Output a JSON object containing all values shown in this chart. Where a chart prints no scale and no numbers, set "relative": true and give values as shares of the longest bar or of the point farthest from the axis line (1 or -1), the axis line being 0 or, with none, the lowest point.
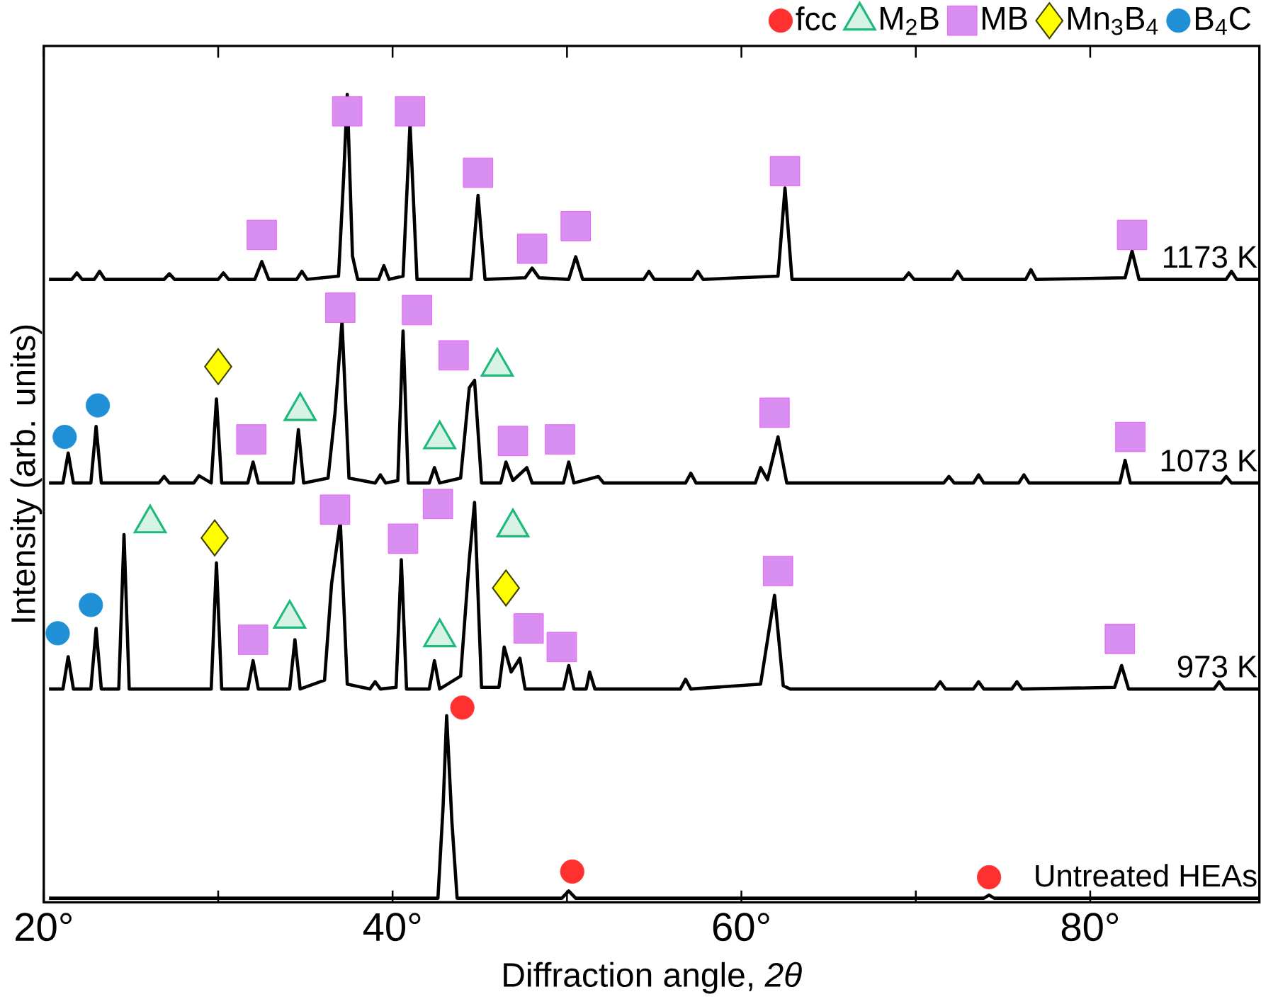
{
  "chart_data": {
    "type": "line",
    "relative": true,
    "xlabel": "Diffraction angle, *2θ*",
    "ylabel": "Intensity (arb. units)",
    "xlim": [
      20,
      89.7
    ],
    "xticks": [
      {
        "value": 20,
        "label": "20°"
      },
      {
        "value": 30,
        "label": null
      },
      {
        "value": 40,
        "label": "40°"
      },
      {
        "value": 50,
        "label": null
      },
      {
        "value": 60,
        "label": "60°"
      },
      {
        "value": 70,
        "label": null
      },
      {
        "value": 80,
        "label": "80°"
      }
    ],
    "legend": "top",
    "line_style": "solid",
    "series": [
      {
        "name": "1173 K",
        "color": "#000000",
        "x": [
          20.3,
          21.6,
          21.9,
          22.2,
          22.9,
          23.2,
          23.5,
          26.9,
          27.2,
          27.5,
          30.0,
          30.3,
          30.6,
          32.1,
          32.5,
          32.9,
          34.5,
          34.8,
          35.1,
          36.9,
          37.2,
          37.4,
          37.7,
          38.0,
          39.2,
          39.5,
          39.8,
          40.6,
          41.0,
          41.4,
          44.5,
          44.9,
          45.3,
          47.6,
          48.0,
          48.4,
          50.1,
          50.5,
          50.9,
          54.4,
          54.7,
          55.0,
          57.2,
          57.5,
          57.8,
          62.1,
          62.5,
          62.9,
          69.3,
          69.6,
          69.9,
          72.1,
          72.4,
          72.7,
          76.3,
          76.6,
          76.9,
          82.0,
          82.4,
          82.8,
          87.8,
          88.1,
          88.4,
          89.7
        ],
        "values": [
          0.771,
          0.771,
          0.779,
          0.771,
          0.771,
          0.781,
          0.771,
          0.771,
          0.778,
          0.771,
          0.771,
          0.779,
          0.771,
          0.771,
          0.793,
          0.771,
          0.771,
          0.781,
          0.771,
          0.775,
          0.9,
          1.0,
          0.8,
          0.771,
          0.771,
          0.788,
          0.771,
          0.775,
          0.964,
          0.771,
          0.771,
          0.875,
          0.771,
          0.773,
          0.785,
          0.773,
          0.771,
          0.799,
          0.771,
          0.771,
          0.781,
          0.771,
          0.771,
          0.781,
          0.771,
          0.775,
          0.884,
          0.771,
          0.771,
          0.779,
          0.771,
          0.771,
          0.781,
          0.771,
          0.771,
          0.783,
          0.771,
          0.773,
          0.806,
          0.771,
          0.771,
          0.781,
          0.771,
          0.771
        ]
      },
      {
        "name": "1073 K",
        "color": "#000000",
        "x": [
          20.3,
          21.1,
          21.4,
          21.7,
          22.7,
          23.0,
          23.3,
          26.6,
          26.9,
          27.2,
          28.6,
          28.9,
          29.6,
          29.9,
          30.2,
          31.7,
          32.0,
          32.3,
          34.3,
          34.6,
          34.9,
          36.3,
          36.7,
          37.1,
          37.5,
          39.0,
          39.3,
          39.6,
          40.3,
          40.6,
          40.9,
          42.1,
          42.4,
          42.7,
          43.9,
          44.4,
          44.7,
          45.1,
          46.2,
          46.5,
          46.9,
          47.7,
          48.0,
          49.8,
          50.1,
          50.4,
          51.8,
          52.1,
          56.8,
          57.1,
          57.4,
          60.8,
          61.1,
          61.5,
          62.1,
          62.6,
          71.6,
          71.9,
          72.2,
          73.3,
          73.6,
          73.9,
          75.9,
          76.2,
          76.5,
          81.7,
          82.0,
          82.3,
          87.5,
          87.8,
          88.1,
          89.7
        ],
        "values": [
          0.519,
          0.519,
          0.556,
          0.519,
          0.519,
          0.589,
          0.519,
          0.519,
          0.527,
          0.519,
          0.519,
          0.528,
          0.519,
          0.623,
          0.519,
          0.519,
          0.545,
          0.519,
          0.519,
          0.585,
          0.519,
          0.525,
          0.606,
          0.719,
          0.525,
          0.519,
          0.529,
          0.519,
          0.522,
          0.707,
          0.519,
          0.519,
          0.538,
          0.519,
          0.525,
          0.637,
          0.646,
          0.519,
          0.519,
          0.545,
          0.522,
          0.538,
          0.519,
          0.519,
          0.545,
          0.519,
          0.527,
          0.519,
          0.519,
          0.531,
          0.519,
          0.519,
          0.538,
          0.523,
          0.576,
          0.519,
          0.519,
          0.527,
          0.519,
          0.519,
          0.529,
          0.519,
          0.519,
          0.529,
          0.519,
          0.519,
          0.547,
          0.519,
          0.519,
          0.527,
          0.519,
          0.519
        ]
      },
      {
        "name": "973 K",
        "color": "#000000",
        "x": [
          20.3,
          21.1,
          21.4,
          21.7,
          22.7,
          23.0,
          23.3,
          24.3,
          24.6,
          24.9,
          29.6,
          29.9,
          30.2,
          31.7,
          32.0,
          32.3,
          34.1,
          34.4,
          34.7,
          36.1,
          36.5,
          37.0,
          37.4,
          38.7,
          39.0,
          39.3,
          40.2,
          40.5,
          40.8,
          42.1,
          42.4,
          42.7,
          43.9,
          44.4,
          44.7,
          45.1,
          46.1,
          46.4,
          46.8,
          47.3,
          47.6,
          49.8,
          50.1,
          50.4,
          51.1,
          51.3,
          51.6,
          56.5,
          56.8,
          57.1,
          61.1,
          61.9,
          62.4,
          62.8,
          71.1,
          71.4,
          71.7,
          73.3,
          73.6,
          73.9,
          75.5,
          75.8,
          76.1,
          81.4,
          81.8,
          82.2,
          87.1,
          87.4,
          87.7,
          89.7
        ],
        "values": [
          0.264,
          0.264,
          0.304,
          0.264,
          0.264,
          0.339,
          0.264,
          0.264,
          0.455,
          0.264,
          0.264,
          0.42,
          0.264,
          0.264,
          0.299,
          0.264,
          0.264,
          0.325,
          0.264,
          0.275,
          0.394,
          0.472,
          0.27,
          0.264,
          0.273,
          0.264,
          0.266,
          0.424,
          0.264,
          0.264,
          0.299,
          0.264,
          0.28,
          0.425,
          0.495,
          0.266,
          0.266,
          0.316,
          0.285,
          0.302,
          0.264,
          0.264,
          0.293,
          0.264,
          0.264,
          0.285,
          0.264,
          0.264,
          0.276,
          0.264,
          0.27,
          0.38,
          0.268,
          0.264,
          0.264,
          0.273,
          0.264,
          0.264,
          0.273,
          0.264,
          0.264,
          0.273,
          0.264,
          0.266,
          0.293,
          0.264,
          0.264,
          0.273,
          0.264,
          0.264
        ]
      },
      {
        "name": "Untreated HEAs",
        "color": "#000000",
        "x": [
          20.3,
          42.6,
          42.9,
          43.1,
          43.4,
          43.7,
          49.7,
          50.1,
          50.5,
          73.9,
          74.2,
          74.5,
          89.7
        ],
        "values": [
          0.005,
          0.005,
          0.12,
          0.231,
          0.1,
          0.005,
          0.005,
          0.014,
          0.005,
          0.005,
          0.009,
          0.005,
          0.005
        ]
      },
      {
        "name": "fcc",
        "type": "scatter",
        "color": "#ff3030",
        "marker": "circle",
        "x": [
          44.0,
          50.3,
          74.2
        ],
        "values": [
          0.241,
          0.038,
          0.031
        ]
      },
      {
        "name": "M$_{2}$B",
        "type": "scatter",
        "color": "#1fb97a",
        "marker": "triangle",
        "x": [
          34.7,
          42.7,
          46.0,
          26.1,
          34.1,
          42.7,
          46.9
        ],
        "values": [
          0.608,
          0.573,
          0.663,
          0.469,
          0.351,
          0.328,
          0.464
        ]
      },
      {
        "name": "MB",
        "type": "scatter",
        "color": "#d98ff2",
        "marker": "square",
        "x": [
          32.5,
          37.4,
          41.0,
          44.9,
          48.0,
          50.5,
          62.5,
          82.4,
          31.9,
          37.0,
          41.4,
          43.5,
          46.9,
          49.6,
          61.9,
          82.3,
          32.0,
          36.7,
          40.6,
          42.6,
          47.8,
          49.7,
          62.1,
          81.7
        ],
        "values": [
          0.826,
          0.979,
          0.979,
          0.903,
          0.809,
          0.837,
          0.905,
          0.826,
          0.573,
          0.736,
          0.733,
          0.677,
          0.571,
          0.573,
          0.606,
          0.576,
          0.325,
          0.486,
          0.45,
          0.493,
          0.339,
          0.316,
          0.41,
          0.326
        ]
      },
      {
        "name": "Mn$_{3}$B$_{4}$",
        "type": "scatter",
        "color": "#ffff00",
        "marker": "diamond",
        "x": [
          30.0,
          29.8,
          46.5
        ],
        "values": [
          0.663,
          0.451,
          0.389
        ]
      },
      {
        "name": "B$_{4}$C",
        "type": "scatter",
        "color": "#1f8fd6",
        "marker": "circle",
        "x": [
          21.2,
          23.1,
          20.8,
          22.7
        ],
        "values": [
          0.576,
          0.615,
          0.333,
          0.368
        ]
      }
    ]
  }
}
